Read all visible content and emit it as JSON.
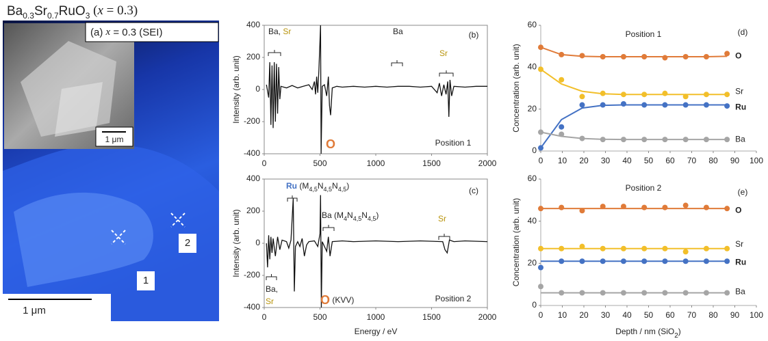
{
  "image_panel": {
    "title_parts": [
      "Ba",
      "0.3",
      "Sr",
      "0.7",
      "RuO",
      "3",
      " (",
      "x",
      " = 0.3)"
    ],
    "label_parts": [
      "(a) ",
      "x",
      " = 0.3 (SEI)"
    ],
    "inset_scale": "1 μm",
    "main_scale": "1 μm",
    "markers": [
      "1",
      "2"
    ]
  },
  "chart_data": [
    {
      "type": "line",
      "panel_label": "(b)",
      "note": "Position 1",
      "ylabel": "Intensity (arb. unit)",
      "xlim": [
        0,
        2000
      ],
      "xticks": [
        0,
        500,
        1000,
        1500,
        2000
      ],
      "ylim": [
        -400,
        400
      ],
      "yticks": [
        -400,
        -200,
        0,
        200,
        400
      ],
      "frame": true,
      "series": [
        {
          "color": "#111111",
          "x": [
            20,
            40,
            50,
            60,
            70,
            80,
            90,
            100,
            110,
            120,
            130,
            140,
            150,
            200,
            250,
            300,
            350,
            400,
            430,
            450,
            460,
            470,
            480,
            490,
            505,
            510,
            520,
            540,
            560,
            575,
            585,
            595,
            610,
            650,
            700,
            800,
            900,
            1000,
            1100,
            1200,
            1300,
            1400,
            1500,
            1550,
            1570,
            1590,
            1610,
            1630,
            1645,
            1655,
            1665,
            1680,
            1700,
            1800,
            1900,
            2000
          ],
          "values": [
            30,
            -50,
            170,
            -220,
            150,
            -240,
            170,
            -200,
            160,
            -150,
            140,
            -60,
            20,
            10,
            25,
            10,
            20,
            30,
            0,
            50,
            -30,
            80,
            -20,
            120,
            400,
            -400,
            20,
            30,
            -40,
            80,
            -100,
            -160,
            10,
            20,
            15,
            20,
            15,
            20,
            15,
            20,
            20,
            15,
            20,
            -20,
            40,
            -40,
            30,
            -30,
            50,
            -170,
            60,
            -40,
            20,
            15,
            20,
            20
          ]
        }
      ],
      "annotations": [
        {
          "parts": [
            {
              "text": "Ba, "
            },
            {
              "text": "Sr",
              "color": "#b8930a"
            }
          ]
        },
        {
          "parts": [
            {
              "text": "Ba"
            }
          ]
        },
        {
          "parts": [
            {
              "text": "Sr",
              "color": "#b8930a"
            }
          ]
        },
        {
          "parts": [
            {
              "text": "O",
              "color": "#e07b39",
              "bold": true,
              "large": true
            }
          ]
        }
      ]
    },
    {
      "type": "line",
      "panel_label": "(c)",
      "note": "Position 2",
      "ylabel": "Intensity (arb. unit)",
      "xlabel": "Energy / eV",
      "xlim": [
        0,
        2000
      ],
      "xticks": [
        0,
        500,
        1000,
        1500,
        2000
      ],
      "ylim": [
        -400,
        400
      ],
      "yticks": [
        -400,
        -200,
        0,
        200,
        400
      ],
      "frame": true,
      "series": [
        {
          "color": "#111111",
          "x": [
            20,
            30,
            40,
            50,
            60,
            70,
            80,
            100,
            120,
            140,
            160,
            200,
            220,
            240,
            260,
            270,
            280,
            300,
            320,
            340,
            360,
            380,
            400,
            450,
            480,
            500,
            505,
            512,
            520,
            560,
            575,
            590,
            610,
            700,
            800,
            1000,
            1200,
            1400,
            1600,
            1620,
            1640,
            1660,
            1700,
            1800,
            2000
          ],
          "values": [
            0,
            -150,
            50,
            -100,
            40,
            -60,
            30,
            -80,
            40,
            -40,
            20,
            10,
            -30,
            20,
            280,
            -300,
            -20,
            10,
            -20,
            30,
            -80,
            -10,
            10,
            15,
            -20,
            60,
            300,
            -400,
            10,
            -50,
            40,
            -80,
            10,
            15,
            10,
            15,
            10,
            15,
            10,
            -40,
            -60,
            20,
            10,
            15,
            10
          ]
        }
      ],
      "annotations": [
        {
          "parts": [
            {
              "text": "Ru",
              "color": "#4472c4",
              "bold": true
            },
            {
              "text": " (M"
            },
            {
              "text": "4,5",
              "sub": true
            },
            {
              "text": "N"
            },
            {
              "text": "4,5",
              "sub": true
            },
            {
              "text": "N"
            },
            {
              "text": "4,5",
              "sub": true
            },
            {
              "text": ")"
            }
          ]
        },
        {
          "parts": [
            {
              "text": "Ba (M"
            },
            {
              "text": "4",
              "sub": true
            },
            {
              "text": "N"
            },
            {
              "text": "4,5",
              "sub": true
            },
            {
              "text": "N"
            },
            {
              "text": "4,5",
              "sub": true
            },
            {
              "text": ")"
            }
          ]
        },
        {
          "parts": [
            {
              "text": "Ba,"
            }
          ]
        },
        {
          "parts": [
            {
              "text": "Sr",
              "color": "#b8930a"
            }
          ]
        },
        {
          "parts": [
            {
              "text": "Sr",
              "color": "#b8930a"
            }
          ]
        },
        {
          "parts": [
            {
              "text": "O",
              "color": "#e07b39",
              "bold": true,
              "large": true
            },
            {
              "text": " (KVV)"
            }
          ]
        }
      ]
    },
    {
      "type": "scatter",
      "panel_label": "(d)",
      "note": "Position 1",
      "ylabel": "Concentration (arb. unit)",
      "xlim": [
        0,
        100
      ],
      "xticks": [
        0,
        10,
        20,
        30,
        40,
        50,
        60,
        70,
        80,
        90,
        100
      ],
      "ylim": [
        0,
        60
      ],
      "yticks": [
        0,
        20,
        40,
        60
      ],
      "frame": false,
      "x": [
        0,
        9.6,
        19.2,
        28.8,
        38.4,
        48,
        57.6,
        67.2,
        76.8,
        86.4
      ],
      "series": [
        {
          "name": "O",
          "color": "#e07b39",
          "values": [
            49.5,
            46,
            45.5,
            45,
            45,
            45,
            44.5,
            45,
            45,
            46.5
          ],
          "fit": [
            49.5,
            46,
            45.2,
            45,
            45,
            45,
            45,
            45,
            45,
            45.2
          ]
        },
        {
          "name": "Sr",
          "color": "#f2bf2a",
          "values": [
            39,
            34,
            26,
            27.5,
            27,
            27,
            27.5,
            26,
            27,
            27
          ],
          "fit": [
            39,
            32,
            28.5,
            27.3,
            27,
            27,
            27,
            27,
            27,
            27
          ]
        },
        {
          "name": "Ru",
          "color": "#4472c4",
          "values": [
            1.5,
            11.5,
            22,
            22,
            22.5,
            22,
            22,
            22,
            22,
            21.5
          ],
          "fit": [
            1.5,
            15,
            20.5,
            21.8,
            22,
            22,
            22,
            22,
            22,
            22
          ]
        },
        {
          "name": "Ba",
          "color": "#a5a5a5",
          "values": [
            9,
            8,
            6,
            5.5,
            5.5,
            5.5,
            5.5,
            5.5,
            5.5,
            5.5
          ],
          "fit": [
            9,
            7,
            6,
            5.6,
            5.5,
            5.5,
            5.5,
            5.5,
            5.5,
            5.5
          ]
        }
      ]
    },
    {
      "type": "scatter",
      "panel_label": "(e)",
      "note": "Position 2",
      "ylabel": "Concentration (arb. unit)",
      "xlabel_parts": [
        "Depth / nm (SiO",
        "2",
        ")"
      ],
      "xlim": [
        0,
        100
      ],
      "xticks": [
        0,
        10,
        20,
        30,
        40,
        50,
        60,
        70,
        80,
        90,
        100
      ],
      "ylim": [
        0,
        60
      ],
      "yticks": [
        0,
        20,
        40,
        60
      ],
      "frame": false,
      "x": [
        0,
        9.6,
        19.2,
        28.8,
        38.4,
        48,
        57.6,
        67.2,
        76.8,
        86.4
      ],
      "series": [
        {
          "name": "O",
          "color": "#e07b39",
          "values": [
            46,
            46.5,
            45,
            47,
            47,
            46.5,
            46.5,
            47.5,
            46.5,
            46
          ],
          "fit": [
            46,
            46,
            46,
            46,
            46,
            46,
            46,
            46,
            46,
            46
          ]
        },
        {
          "name": "Sr",
          "color": "#f2bf2a",
          "values": [
            27,
            27,
            28,
            27,
            27,
            27,
            27,
            25.5,
            27,
            27
          ],
          "fit": [
            27,
            27,
            27,
            27,
            27,
            27,
            27,
            27,
            27,
            27
          ]
        },
        {
          "name": "Ru",
          "color": "#4472c4",
          "values": [
            18,
            21,
            21,
            21,
            21,
            21,
            21,
            21,
            21,
            21
          ],
          "fit": [
            21,
            21,
            21,
            21,
            21,
            21,
            21,
            21,
            21,
            21
          ]
        },
        {
          "name": "Ba",
          "color": "#a5a5a5",
          "values": [
            9,
            6,
            6,
            6,
            6,
            6,
            6,
            6,
            6,
            6
          ],
          "fit": [
            6,
            6,
            6,
            6,
            6,
            6,
            6,
            6,
            6,
            6
          ]
        }
      ]
    }
  ]
}
